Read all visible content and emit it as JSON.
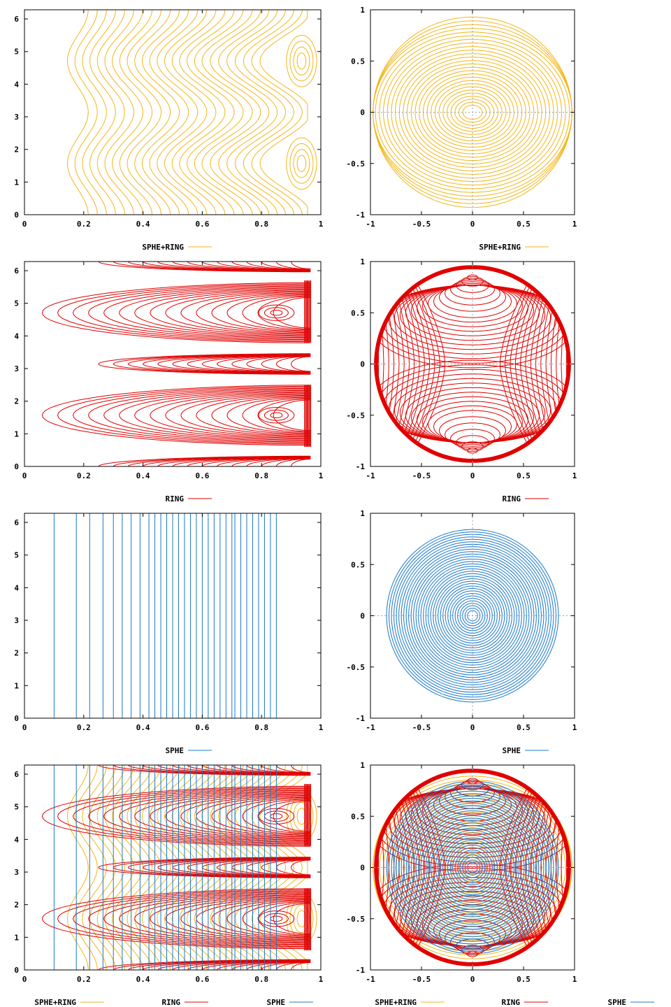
{
  "colors": {
    "sphe_ring": "#f2b618",
    "ring": "#e00000",
    "sphe": "#1a78c8",
    "frame": "#000000",
    "zero_axis": "#a0a0a0"
  },
  "chart_data": [
    {
      "id": "sphe-ring-cyl",
      "type": "line",
      "kind": "contour-cylindrical",
      "series": [
        {
          "name": "SPHE+RING",
          "color": "#f2b618"
        }
      ],
      "xlim": [
        0,
        1
      ],
      "ylim": [
        0,
        6.28
      ],
      "xticks": [
        "0",
        "0.2",
        "0.4",
        "0.6",
        "0.8",
        "1"
      ],
      "yticks": [
        "0",
        "1",
        "2",
        "3",
        "4",
        "5",
        "6"
      ],
      "xtick_values": [
        0,
        0.2,
        0.4,
        0.6,
        0.8,
        1
      ],
      "ytick_values": [
        0,
        1,
        2,
        3,
        4,
        5,
        6
      ],
      "grid": false,
      "legend": "bottom"
    },
    {
      "id": "sphe-ring-polar",
      "type": "line",
      "kind": "contour-polar",
      "series": [
        {
          "name": "SPHE+RING",
          "color": "#f2b618"
        }
      ],
      "xlim": [
        -1,
        1
      ],
      "ylim": [
        -1,
        1
      ],
      "xticks": [
        "-1",
        "-0.5",
        "0",
        "0.5",
        "1"
      ],
      "yticks": [
        "-1",
        "-0.5",
        "0",
        "0.5",
        "1"
      ],
      "xtick_values": [
        -1,
        -0.5,
        0,
        0.5,
        1
      ],
      "ytick_values": [
        -1,
        -0.5,
        0,
        0.5,
        1
      ],
      "grid": false,
      "zero_axes": true,
      "legend": "bottom"
    },
    {
      "id": "ring-cyl",
      "type": "line",
      "kind": "contour-cylindrical",
      "series": [
        {
          "name": "RING",
          "color": "#e00000"
        }
      ],
      "xlim": [
        0,
        1
      ],
      "ylim": [
        0,
        6.28
      ],
      "xticks": [
        "0",
        "0.2",
        "0.4",
        "0.6",
        "0.8",
        "1"
      ],
      "yticks": [
        "0",
        "1",
        "2",
        "3",
        "4",
        "5",
        "6"
      ],
      "xtick_values": [
        0,
        0.2,
        0.4,
        0.6,
        0.8,
        1
      ],
      "ytick_values": [
        0,
        1,
        2,
        3,
        4,
        5,
        6
      ],
      "grid": false,
      "legend": "bottom"
    },
    {
      "id": "ring-polar",
      "type": "line",
      "kind": "contour-polar",
      "series": [
        {
          "name": "RING",
          "color": "#e00000"
        }
      ],
      "xlim": [
        -1,
        1
      ],
      "ylim": [
        -1,
        1
      ],
      "xticks": [
        "-1",
        "-0.5",
        "0",
        "0.5",
        "1"
      ],
      "yticks": [
        "-1",
        "-0.5",
        "0",
        "0.5",
        "1"
      ],
      "xtick_values": [
        -1,
        -0.5,
        0,
        0.5,
        1
      ],
      "ytick_values": [
        -1,
        -0.5,
        0,
        0.5,
        1
      ],
      "grid": false,
      "zero_axes": true,
      "legend": "bottom"
    },
    {
      "id": "sphe-cyl",
      "type": "line",
      "kind": "contour-cylindrical",
      "series": [
        {
          "name": "SPHE",
          "color": "#1a78c8"
        }
      ],
      "xlim": [
        0,
        1
      ],
      "ylim": [
        0,
        6.28
      ],
      "xticks": [
        "0",
        "0.2",
        "0.4",
        "0.6",
        "0.8",
        "1"
      ],
      "yticks": [
        "0",
        "1",
        "2",
        "3",
        "4",
        "5",
        "6"
      ],
      "xtick_values": [
        0,
        0.2,
        0.4,
        0.6,
        0.8,
        1
      ],
      "ytick_values": [
        0,
        1,
        2,
        3,
        4,
        5,
        6
      ],
      "grid": false,
      "legend": "bottom"
    },
    {
      "id": "sphe-polar",
      "type": "line",
      "kind": "contour-polar",
      "series": [
        {
          "name": "SPHE",
          "color": "#1a78c8"
        }
      ],
      "xlim": [
        -1,
        1
      ],
      "ylim": [
        -1,
        1
      ],
      "xticks": [
        "-1",
        "-0.5",
        "0",
        "0.5",
        "1"
      ],
      "yticks": [
        "-1",
        "-0.5",
        "0",
        "0.5",
        "1"
      ],
      "xtick_values": [
        -1,
        -0.5,
        0,
        0.5,
        1
      ],
      "ytick_values": [
        -1,
        -0.5,
        0,
        0.5,
        1
      ],
      "grid": false,
      "zero_axes": true,
      "legend": "bottom"
    },
    {
      "id": "all-cyl",
      "type": "line",
      "kind": "contour-cylindrical",
      "series": [
        {
          "name": "SPHE+RING",
          "color": "#f2b618"
        },
        {
          "name": "RING",
          "color": "#e00000"
        },
        {
          "name": "SPHE",
          "color": "#1a78c8"
        }
      ],
      "xlim": [
        0,
        1
      ],
      "ylim": [
        0,
        6.28
      ],
      "xticks": [
        "0",
        "0.2",
        "0.4",
        "0.6",
        "0.8",
        "1"
      ],
      "yticks": [
        "0",
        "1",
        "2",
        "3",
        "4",
        "5",
        "6"
      ],
      "xtick_values": [
        0,
        0.2,
        0.4,
        0.6,
        0.8,
        1
      ],
      "ytick_values": [
        0,
        1,
        2,
        3,
        4,
        5,
        6
      ],
      "grid": false,
      "legend": "bottom"
    },
    {
      "id": "all-polar",
      "type": "line",
      "kind": "contour-polar",
      "series": [
        {
          "name": "SPHE+RING",
          "color": "#f2b618"
        },
        {
          "name": "RING",
          "color": "#e00000"
        },
        {
          "name": "SPHE",
          "color": "#1a78c8"
        }
      ],
      "xlim": [
        -1,
        1
      ],
      "ylim": [
        -1,
        1
      ],
      "xticks": [
        "-1",
        "-0.5",
        "0",
        "0.5",
        "1"
      ],
      "yticks": [
        "-1",
        "-0.5",
        "0",
        "0.5",
        "1"
      ],
      "xtick_values": [
        -1,
        -0.5,
        0,
        0.5,
        1
      ],
      "ytick_values": [
        -1,
        -0.5,
        0,
        0.5,
        1
      ],
      "grid": false,
      "zero_axes": true,
      "legend": "bottom"
    }
  ]
}
